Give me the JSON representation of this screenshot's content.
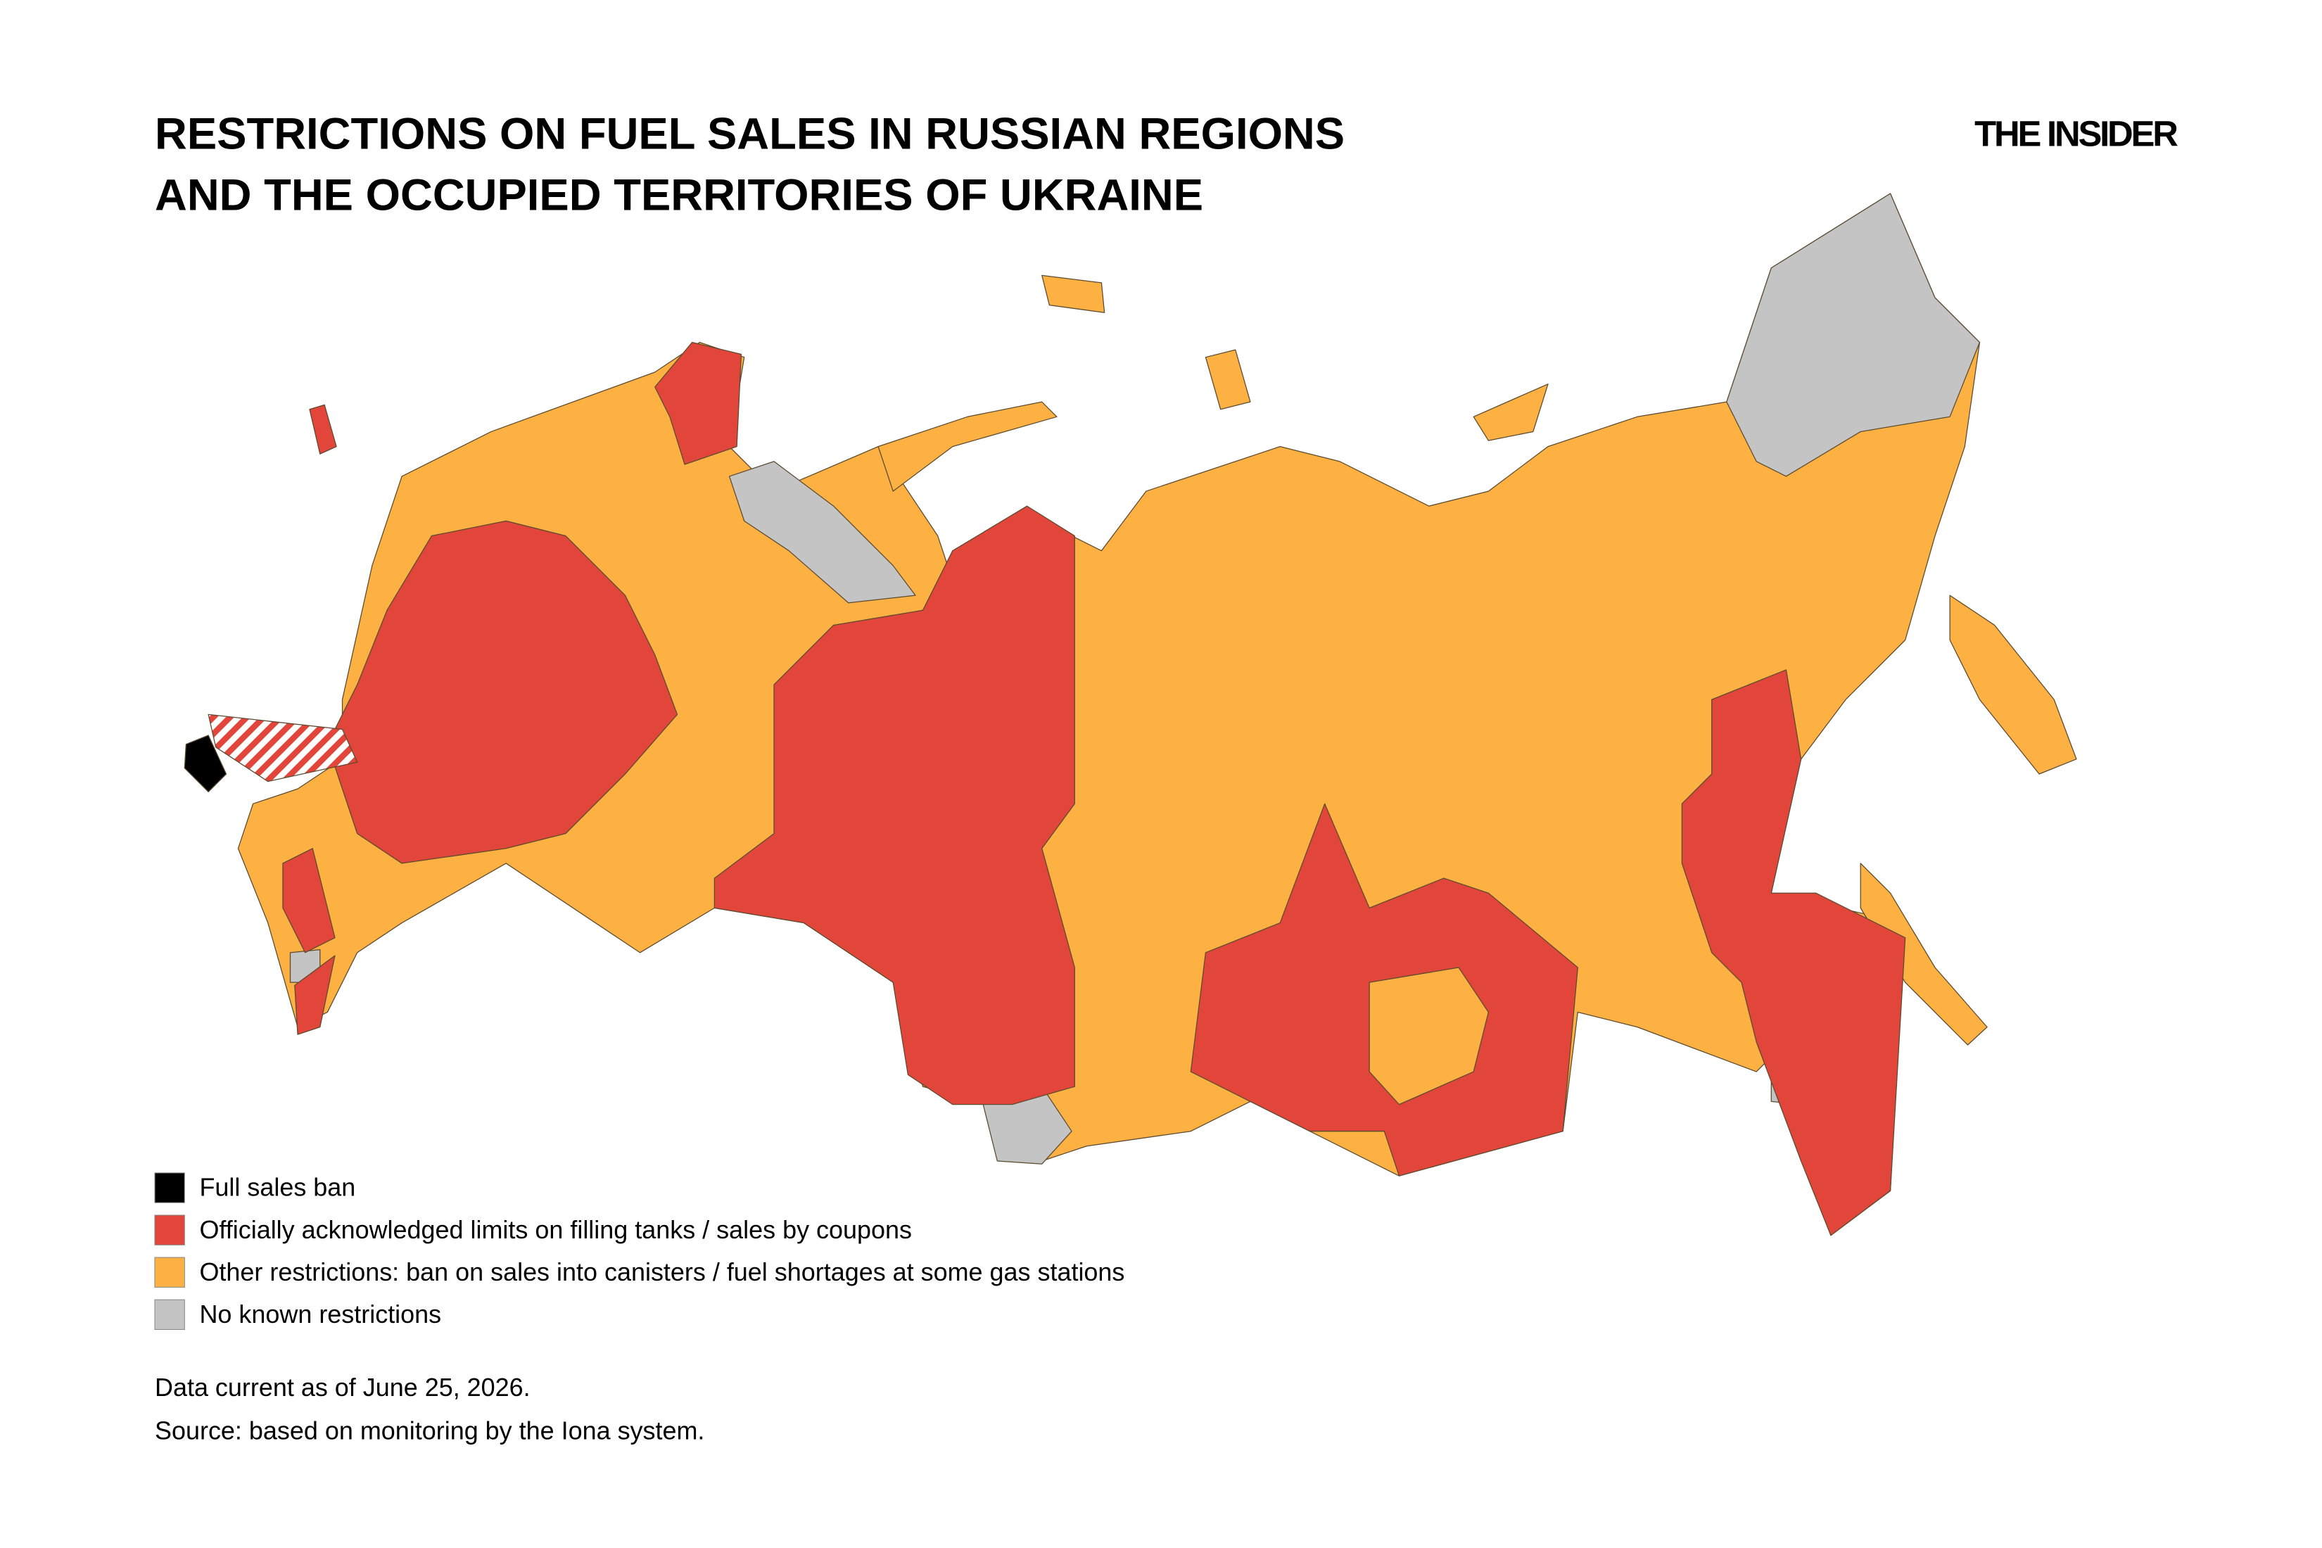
{
  "header": {
    "title": [
      "RESTRICTIONS ON FUEL SALES IN RUSSIAN REGIONS",
      "AND THE OCCUPIED TERRITORIES OF UKRAINE"
    ],
    "logo": "THE INSIDER"
  },
  "legend": [
    {
      "label": "Full sales ban",
      "color": "#000000"
    },
    {
      "label": "Officially acknowledged limits on filling tanks / sales by coupons",
      "color": "#e2463b"
    },
    {
      "label": "Other restrictions: ban on sales into canisters / fuel shortages at some gas stations",
      "color": "#fdb142"
    },
    {
      "label": "No known restrictions",
      "color": "#c4c4c4"
    }
  ],
  "notes": [
    "Data current as of June 25, 2026.",
    "Source: based on monitoring by the Iona system."
  ]
}
